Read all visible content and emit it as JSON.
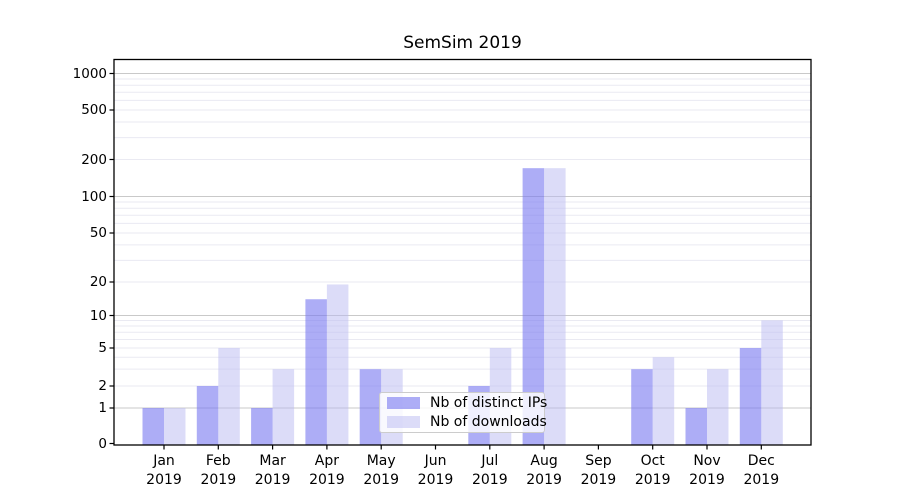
{
  "chart_data": {
    "type": "bar",
    "title": "SemSim 2019",
    "categories": [
      "Jan 2019",
      "Feb 2019",
      "Mar 2019",
      "Apr 2019",
      "May 2019",
      "Jun 2019",
      "Jul 2019",
      "Aug 2019",
      "Sep 2019",
      "Oct 2019",
      "Nov 2019",
      "Dec 2019"
    ],
    "series": [
      {
        "name": "Nb of distinct IPs",
        "color": "#7a7af0",
        "opacity": 0.62,
        "apparent_color": "#aaaaf5",
        "values": [
          1,
          2,
          1,
          14,
          3,
          0,
          2,
          170,
          0,
          3,
          1,
          5
        ]
      },
      {
        "name": "Nb of downloads",
        "color": "#babaf1",
        "opacity": 0.5,
        "apparent_color": "#dcdcf8",
        "values": [
          1,
          5,
          3,
          19,
          3,
          0,
          5,
          170,
          0,
          4,
          3,
          9
        ]
      }
    ],
    "xlabel": "",
    "ylabel": "",
    "yscale": "symlog",
    "ylim": [
      0,
      1000
    ],
    "yticks": [
      0,
      1,
      2,
      5,
      10,
      20,
      50,
      100,
      200,
      500,
      1000
    ],
    "grid": "horizontal major gray, minor light",
    "legend_position": "inside lower center",
    "colors": {
      "major_grid": "#c9c9c9",
      "minor_grid": "#eaeaf2",
      "spine": "#000000"
    }
  }
}
